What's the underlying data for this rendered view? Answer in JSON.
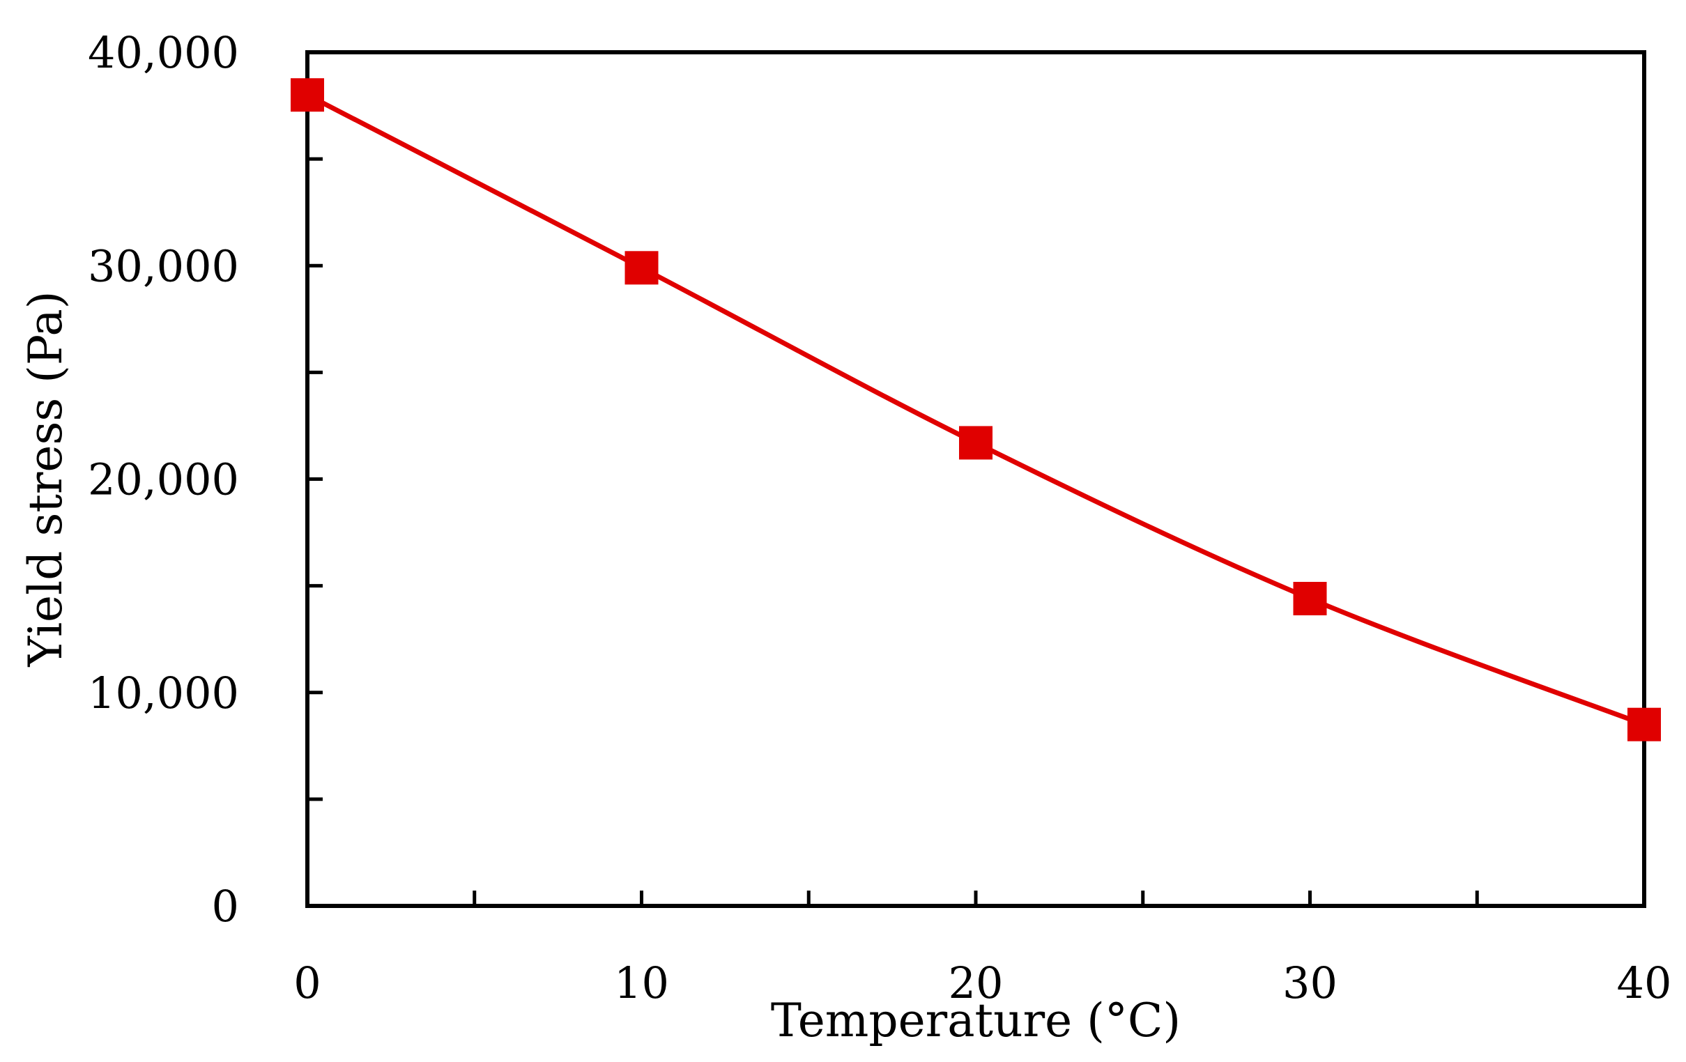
{
  "chart_data": {
    "type": "line",
    "title": "",
    "xlabel": "Temperature (°C)",
    "ylabel": "Yield stress (Pa)",
    "xlim": [
      0,
      40
    ],
    "ylim": [
      0,
      40000
    ],
    "x_ticks": [
      0,
      10,
      20,
      30,
      40
    ],
    "x_tick_labels": [
      "0",
      "10",
      "20",
      "30",
      "40"
    ],
    "x_minor_ticks": [
      5,
      15,
      25,
      35
    ],
    "y_ticks": [
      0,
      10000,
      20000,
      30000,
      40000
    ],
    "y_tick_labels": [
      "0",
      "10,000",
      "20,000",
      "30,000",
      "40,000"
    ],
    "y_minor_ticks": [
      5000,
      15000,
      25000,
      35000
    ],
    "grid": false,
    "series": [
      {
        "name": "Yield stress",
        "color": "#e00000",
        "marker": "square",
        "x": [
          0,
          10,
          20,
          30,
          40
        ],
        "values": [
          38000,
          29900,
          21700,
          14400,
          8500
        ]
      }
    ]
  }
}
